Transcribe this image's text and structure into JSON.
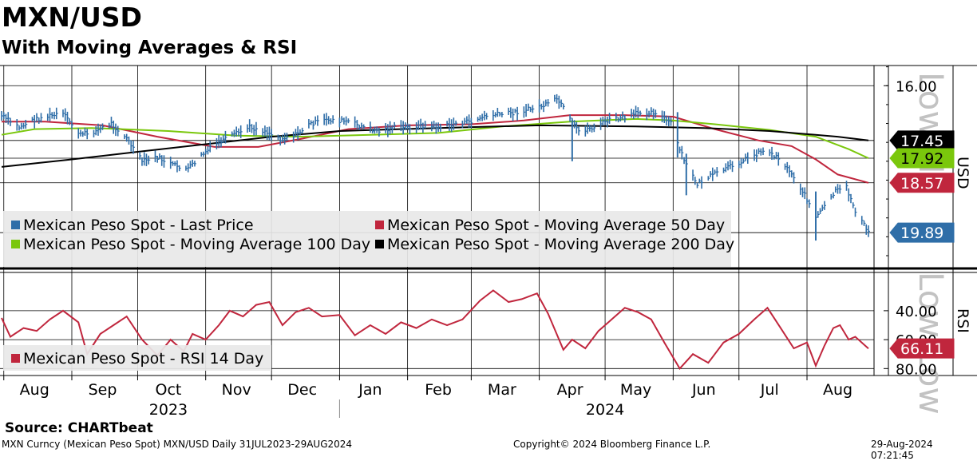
{
  "header": {
    "title": "MXN/USD",
    "subtitle": "With Moving Averages & RSI"
  },
  "footer": {
    "source": "Source: CHARTbeat",
    "security": "MXN Curncy (Mexican Peso Spot) MXN/USD  Daily 31JUL2023-29AUG2024",
    "copyright": "Copyright© 2024 Bloomberg Finance L.P.",
    "timestamp": "29-Aug-2024 07:21:45"
  },
  "colors": {
    "price": "#2f6ea8",
    "ma50": "#c0263d",
    "ma100": "#7ac70c",
    "ma200": "#000000",
    "rsi": "#c0263d",
    "legend_bg": "#e8e8e8"
  },
  "watermark": {
    "price_panel": "Low Hi",
    "rsi_panel": "Low Low"
  },
  "chart_data": [
    {
      "type": "line",
      "panel": "price",
      "x_start": "2023-07-31",
      "x_end": "2024-08-29",
      "y_axis_title": "USD",
      "y_inverted": true,
      "ylim": [
        20.6,
        15.4
      ],
      "y_ticks": [
        16.0
      ],
      "y_tick_labels": [
        "16.00"
      ],
      "legend_placement": "bottom-left",
      "series": [
        {
          "name": "Mexican Peso Spot - Last Price",
          "style": "bars",
          "points": [
            [
              "2023-07-31",
              16.8
            ],
            [
              "2023-08-08",
              17.1
            ],
            [
              "2023-08-15",
              16.9
            ],
            [
              "2023-08-22",
              16.8
            ],
            [
              "2023-08-28",
              16.75
            ],
            [
              "2023-09-05",
              17.3
            ],
            [
              "2023-09-12",
              17.2
            ],
            [
              "2023-09-19",
              17.0
            ],
            [
              "2023-09-26",
              17.4
            ],
            [
              "2023-10-03",
              18.0
            ],
            [
              "2023-10-10",
              17.9
            ],
            [
              "2023-10-17",
              18.1
            ],
            [
              "2023-10-24",
              18.2
            ],
            [
              "2023-10-31",
              17.8
            ],
            [
              "2023-11-07",
              17.5
            ],
            [
              "2023-11-14",
              17.3
            ],
            [
              "2023-11-21",
              17.1
            ],
            [
              "2023-11-28",
              17.2
            ],
            [
              "2023-12-05",
              17.4
            ],
            [
              "2023-12-12",
              17.3
            ],
            [
              "2023-12-19",
              17.0
            ],
            [
              "2023-12-27",
              16.9
            ],
            [
              "2024-01-05",
              16.95
            ],
            [
              "2024-01-12",
              17.1
            ],
            [
              "2024-01-19",
              17.2
            ],
            [
              "2024-01-26",
              17.1
            ],
            [
              "2024-02-02",
              17.1
            ],
            [
              "2024-02-09",
              17.05
            ],
            [
              "2024-02-16",
              17.1
            ],
            [
              "2024-02-23",
              17.0
            ],
            [
              "2024-03-01",
              16.95
            ],
            [
              "2024-03-08",
              16.8
            ],
            [
              "2024-03-15",
              16.75
            ],
            [
              "2024-03-22",
              16.7
            ],
            [
              "2024-03-29",
              16.6
            ],
            [
              "2024-04-05",
              16.5
            ],
            [
              "2024-04-09",
              16.35
            ],
            [
              "2024-04-12",
              16.6
            ],
            [
              "2024-04-16",
              17.0
            ],
            [
              "2024-04-19",
              17.2
            ],
            [
              "2024-04-26",
              17.1
            ],
            [
              "2024-05-03",
              16.9
            ],
            [
              "2024-05-10",
              16.85
            ],
            [
              "2024-05-17",
              16.7
            ],
            [
              "2024-05-24",
              16.7
            ],
            [
              "2024-05-31",
              17.0
            ],
            [
              "2024-06-04",
              17.7
            ],
            [
              "2024-06-07",
              18.1
            ],
            [
              "2024-06-12",
              18.6
            ],
            [
              "2024-06-18",
              18.4
            ],
            [
              "2024-06-25",
              18.2
            ],
            [
              "2024-07-02",
              18.0
            ],
            [
              "2024-07-09",
              17.8
            ],
            [
              "2024-07-12",
              17.7
            ],
            [
              "2024-07-19",
              17.9
            ],
            [
              "2024-07-26",
              18.4
            ],
            [
              "2024-08-01",
              19.0
            ],
            [
              "2024-08-05",
              19.5
            ],
            [
              "2024-08-09",
              19.2
            ],
            [
              "2024-08-14",
              18.8
            ],
            [
              "2024-08-19",
              18.7
            ],
            [
              "2024-08-23",
              19.3
            ],
            [
              "2024-08-29",
              19.89
            ]
          ]
        },
        {
          "name": "Mexican Peso Spot - Moving Average 50 Day",
          "points": [
            [
              "2023-07-31",
              16.95
            ],
            [
              "2023-08-20",
              16.95
            ],
            [
              "2023-09-15",
              17.05
            ],
            [
              "2023-10-10",
              17.35
            ],
            [
              "2023-11-05",
              17.62
            ],
            [
              "2023-11-25",
              17.62
            ],
            [
              "2023-12-15",
              17.4
            ],
            [
              "2024-01-05",
              17.15
            ],
            [
              "2024-02-01",
              17.05
            ],
            [
              "2024-03-01",
              17.02
            ],
            [
              "2024-03-25",
              16.92
            ],
            [
              "2024-04-15",
              16.78
            ],
            [
              "2024-05-10",
              16.78
            ],
            [
              "2024-06-01",
              16.82
            ],
            [
              "2024-06-20",
              17.15
            ],
            [
              "2024-07-10",
              17.45
            ],
            [
              "2024-07-25",
              17.6
            ],
            [
              "2024-08-05",
              17.95
            ],
            [
              "2024-08-15",
              18.35
            ],
            [
              "2024-08-29",
              18.57
            ]
          ]
        },
        {
          "name": "Mexican Peso Spot - Moving Average 100 Day",
          "points": [
            [
              "2023-07-31",
              17.3
            ],
            [
              "2023-08-15",
              17.15
            ],
            [
              "2023-09-10",
              17.12
            ],
            [
              "2023-10-15",
              17.2
            ],
            [
              "2023-11-15",
              17.32
            ],
            [
              "2023-12-15",
              17.35
            ],
            [
              "2024-01-15",
              17.3
            ],
            [
              "2024-02-15",
              17.25
            ],
            [
              "2024-03-15",
              17.08
            ],
            [
              "2024-04-15",
              16.95
            ],
            [
              "2024-05-15",
              16.88
            ],
            [
              "2024-06-01",
              16.92
            ],
            [
              "2024-06-20",
              17.02
            ],
            [
              "2024-07-15",
              17.17
            ],
            [
              "2024-08-05",
              17.35
            ],
            [
              "2024-08-20",
              17.68
            ],
            [
              "2024-08-29",
              17.92
            ]
          ]
        },
        {
          "name": "Mexican Peso Spot - Moving Average 200 Day",
          "points": [
            [
              "2023-07-31",
              18.15
            ],
            [
              "2023-09-01",
              17.95
            ],
            [
              "2023-10-01",
              17.75
            ],
            [
              "2023-11-01",
              17.55
            ],
            [
              "2023-12-01",
              17.35
            ],
            [
              "2024-01-01",
              17.2
            ],
            [
              "2024-02-15",
              17.12
            ],
            [
              "2024-04-01",
              17.05
            ],
            [
              "2024-05-15",
              17.08
            ],
            [
              "2024-06-15",
              17.12
            ],
            [
              "2024-07-15",
              17.2
            ],
            [
              "2024-08-15",
              17.35
            ],
            [
              "2024-08-29",
              17.45
            ]
          ]
        }
      ],
      "last_value_tags": [
        {
          "value": 17.45,
          "label": "17.45",
          "series": "Mexican Peso Spot - Moving Average 200 Day"
        },
        {
          "value": 17.92,
          "label": "17.92",
          "series": "Mexican Peso Spot - Moving Average 100 Day"
        },
        {
          "value": 18.57,
          "label": "18.57",
          "series": "Mexican Peso Spot - Moving Average 50 Day"
        },
        {
          "value": 19.89,
          "label": "19.89",
          "series": "Mexican Peso Spot - Last Price"
        }
      ]
    },
    {
      "type": "line",
      "panel": "rsi",
      "y_axis_title": "RSI",
      "y_inverted": true,
      "ylim": [
        16,
        84
      ],
      "y_ticks": [
        40,
        60,
        80
      ],
      "y_tick_labels": [
        "40.00",
        "60.00",
        "80.00"
      ],
      "legend_placement": "bottom-left",
      "series": [
        {
          "name": "Mexican Peso Spot - RSI 14 Day",
          "points": [
            [
              "2023-07-31",
              45
            ],
            [
              "2023-08-04",
              58
            ],
            [
              "2023-08-10",
              52
            ],
            [
              "2023-08-16",
              54
            ],
            [
              "2023-08-22",
              46
            ],
            [
              "2023-08-28",
              40
            ],
            [
              "2023-09-04",
              48
            ],
            [
              "2023-09-08",
              70
            ],
            [
              "2023-09-14",
              56
            ],
            [
              "2023-09-20",
              50
            ],
            [
              "2023-09-26",
              44
            ],
            [
              "2023-10-03",
              60
            ],
            [
              "2023-10-10",
              71
            ],
            [
              "2023-10-16",
              60
            ],
            [
              "2023-10-22",
              68
            ],
            [
              "2023-10-26",
              56
            ],
            [
              "2023-11-01",
              60
            ],
            [
              "2023-11-07",
              50
            ],
            [
              "2023-11-12",
              40
            ],
            [
              "2023-11-18",
              44
            ],
            [
              "2023-11-24",
              36
            ],
            [
              "2023-11-30",
              34
            ],
            [
              "2023-12-06",
              50
            ],
            [
              "2023-12-12",
              41
            ],
            [
              "2023-12-18",
              38
            ],
            [
              "2023-12-24",
              44
            ],
            [
              "2024-01-01",
              43
            ],
            [
              "2024-01-08",
              57
            ],
            [
              "2024-01-15",
              50
            ],
            [
              "2024-01-22",
              56
            ],
            [
              "2024-01-29",
              48
            ],
            [
              "2024-02-05",
              52
            ],
            [
              "2024-02-12",
              46
            ],
            [
              "2024-02-19",
              50
            ],
            [
              "2024-02-26",
              46
            ],
            [
              "2024-03-05",
              33
            ],
            [
              "2024-03-11",
              26
            ],
            [
              "2024-03-18",
              34
            ],
            [
              "2024-03-24",
              32
            ],
            [
              "2024-03-31",
              28
            ],
            [
              "2024-04-05",
              42
            ],
            [
              "2024-04-12",
              67
            ],
            [
              "2024-04-16",
              60
            ],
            [
              "2024-04-22",
              66
            ],
            [
              "2024-04-28",
              54
            ],
            [
              "2024-05-04",
              46
            ],
            [
              "2024-05-10",
              38
            ],
            [
              "2024-05-16",
              41
            ],
            [
              "2024-05-22",
              46
            ],
            [
              "2024-05-28",
              62
            ],
            [
              "2024-06-04",
              80
            ],
            [
              "2024-06-10",
              70
            ],
            [
              "2024-06-17",
              76
            ],
            [
              "2024-06-24",
              62
            ],
            [
              "2024-07-01",
              56
            ],
            [
              "2024-07-08",
              46
            ],
            [
              "2024-07-14",
              38
            ],
            [
              "2024-07-20",
              52
            ],
            [
              "2024-07-26",
              66
            ],
            [
              "2024-08-01",
              62
            ],
            [
              "2024-08-05",
              78
            ],
            [
              "2024-08-09",
              64
            ],
            [
              "2024-08-13",
              52
            ],
            [
              "2024-08-16",
              50
            ],
            [
              "2024-08-20",
              60
            ],
            [
              "2024-08-23",
              58
            ],
            [
              "2024-08-29",
              66.11
            ]
          ]
        }
      ],
      "last_value_tags": [
        {
          "value": 66.11,
          "label": "66.11",
          "series": "Mexican Peso Spot - RSI 14 Day"
        }
      ]
    }
  ],
  "x_axis": {
    "months": [
      {
        "label": "Aug",
        "date": "2023-08-15"
      },
      {
        "label": "Sep",
        "date": "2023-09-15"
      },
      {
        "label": "Oct",
        "date": "2023-10-15"
      },
      {
        "label": "Nov",
        "date": "2023-11-15"
      },
      {
        "label": "Dec",
        "date": "2023-12-15"
      },
      {
        "label": "Jan",
        "date": "2024-01-15"
      },
      {
        "label": "Feb",
        "date": "2024-02-15"
      },
      {
        "label": "Mar",
        "date": "2024-03-15"
      },
      {
        "label": "Apr",
        "date": "2024-04-15"
      },
      {
        "label": "May",
        "date": "2024-05-15"
      },
      {
        "label": "Jun",
        "date": "2024-06-15"
      },
      {
        "label": "Jul",
        "date": "2024-07-15"
      },
      {
        "label": "Aug",
        "date": "2024-08-15"
      }
    ],
    "years": [
      {
        "label": "2023",
        "date": "2023-10-15"
      },
      {
        "label": "2024",
        "date": "2024-05-01"
      }
    ]
  }
}
